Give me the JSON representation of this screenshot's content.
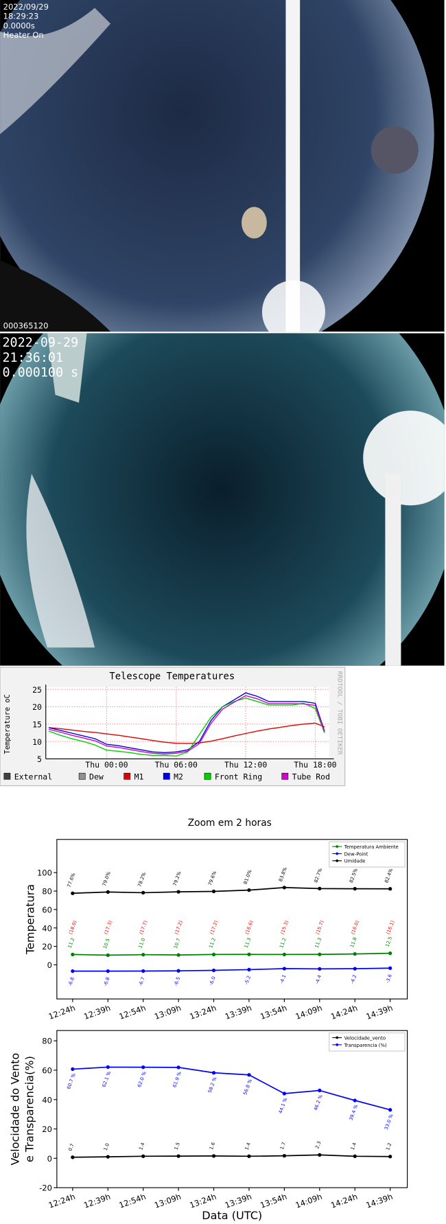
{
  "images": [
    {
      "lines": [
        "2022/09/29",
        "18:29:23",
        "0.0000s",
        "Heater On"
      ],
      "footer": "000365120"
    },
    {
      "lines": [
        "2022-09-29",
        "21:36:01",
        "0.000100 s"
      ]
    }
  ],
  "chart_data": [
    {
      "type": "line",
      "title": "Telescope Temperatures",
      "ylabel": "Temperature oC",
      "side_text": "RRDTOOL / TOBI OETIKER",
      "x": [
        -5,
        -4,
        -3,
        -2,
        -1,
        0,
        1,
        2,
        3,
        4,
        5,
        6,
        7,
        8,
        9,
        10,
        11,
        12,
        13,
        14,
        15,
        16,
        17,
        18,
        18.8
      ],
      "xlim": [
        -5.25,
        19.2
      ],
      "xticks": [
        {
          "value": 0,
          "label": "Thu 00:00"
        },
        {
          "value": 6,
          "label": "Thu 06:00"
        },
        {
          "value": 12,
          "label": "Thu 12:00"
        },
        {
          "value": 18,
          "label": "Thu 18:00"
        }
      ],
      "ylim": [
        5,
        25
      ],
      "yticks": [
        5,
        10,
        15,
        20,
        25
      ],
      "grid": true,
      "legend_only": [
        {
          "name": "External",
          "color": "#404040"
        },
        {
          "name": "Dew",
          "color": "#909090"
        }
      ],
      "series": [
        {
          "name": "M1",
          "color": "#e00000",
          "values": [
            14,
            13.7,
            13.3,
            12.9,
            12.6,
            12.2,
            11.8,
            11.3,
            10.8,
            10.3,
            9.8,
            9.5,
            9.4,
            9.6,
            10.1,
            10.8,
            11.6,
            12.3,
            13,
            13.6,
            14.1,
            14.6,
            15,
            15.3,
            14.2
          ]
        },
        {
          "name": "M2",
          "color": "#0000e0",
          "values": [
            14,
            13.2,
            12.4,
            11.6,
            10.8,
            9.2,
            8.8,
            8.2,
            7.6,
            7,
            6.8,
            7,
            7.6,
            10,
            16,
            20,
            22,
            24,
            23,
            21.5,
            21.5,
            21.5,
            21.5,
            21,
            13
          ]
        },
        {
          "name": "Front Ring",
          "color": "#00d000",
          "values": [
            13,
            11.8,
            10.8,
            10,
            9,
            7.5,
            7.2,
            6.8,
            6.3,
            6,
            6,
            5.8,
            7,
            12,
            17,
            20,
            21.5,
            22.5,
            21.5,
            20.5,
            20.5,
            20.5,
            21,
            19.5,
            12.5
          ]
        },
        {
          "name": "Tube Rod",
          "color": "#d000d0",
          "values": [
            13.5,
            12.7,
            11.8,
            11,
            10.2,
            8.7,
            8.3,
            7.7,
            7.1,
            6.6,
            6.4,
            6.6,
            7.2,
            9.4,
            15.2,
            19.3,
            21.3,
            23.2,
            22.3,
            20.9,
            20.9,
            20.9,
            20.8,
            20.4,
            12.8
          ]
        }
      ]
    },
    {
      "type": "line",
      "title": "Zoom em 2 horas",
      "ylabel": "Temperatura",
      "categories": [
        "12:24h",
        "12:39h",
        "12:54h",
        "13:09h",
        "13:24h",
        "13:39h",
        "13:54h",
        "14:09h",
        "14:24h",
        "14:39h"
      ],
      "ylim": [
        -37,
        136
      ],
      "yticks": [
        0,
        20,
        40,
        60,
        80,
        100
      ],
      "annotations": [
        "(18.0)",
        "(17.3)",
        "(17.7)",
        "(17.2)",
        "(17.2)",
        "(16.6)",
        "(15.3)",
        "(15.7)",
        "(16.0)",
        "(16.1)"
      ],
      "series": [
        {
          "name": "Temperatura Ambiente",
          "color": "#008000",
          "values": [
            11.2,
            10.5,
            11.0,
            10.7,
            11.2,
            11.3,
            11.2,
            11.3,
            11.8,
            12.5
          ],
          "value_labels": [
            "11.2",
            "10.5",
            "11.0",
            "10.7",
            "11.2",
            "11.3",
            "11.2",
            "11.3",
            "11.8",
            "12.5"
          ]
        },
        {
          "name": "Dew-Point",
          "color": "#0000ff",
          "values": [
            -6.8,
            -6.8,
            -6.7,
            -6.5,
            -6.0,
            -5.2,
            -4.1,
            -4.4,
            -4.2,
            -3.6
          ],
          "value_labels": [
            "-6.8",
            "-6.8",
            "-6.7",
            "-6.5",
            "-6.0",
            "-5.2",
            "-4.1",
            "-4.4",
            "-4.2",
            "-3.6"
          ]
        },
        {
          "name": "Umidade",
          "color": "#000000",
          "values": [
            77.6,
            79.0,
            78.2,
            79.2,
            79.6,
            81.0,
            83.8,
            82.7,
            82.5,
            82.4
          ],
          "value_labels": [
            "77.6%",
            "79.0%",
            "78.2%",
            "79.2%",
            "79.6%",
            "81.0%",
            "83.8%",
            "82.7%",
            "82.5%",
            "82.4%"
          ]
        }
      ]
    },
    {
      "type": "line",
      "ylabel": "Velocidade do Vento",
      "ylabel2": "e Transparencia(%)",
      "xlabel": "Data (UTC)",
      "categories": [
        "12:24h",
        "12:39h",
        "12:54h",
        "13:09h",
        "13:24h",
        "13:39h",
        "13:54h",
        "14:09h",
        "14:24h",
        "14:39h"
      ],
      "ylim": [
        -20,
        87
      ],
      "yticks": [
        -20,
        0,
        20,
        40,
        60,
        80
      ],
      "series": [
        {
          "name": "Velocidade_vento",
          "color": "#000000",
          "values": [
            0.7,
            1.0,
            1.4,
            1.5,
            1.6,
            1.4,
            1.7,
            2.3,
            1.4,
            1.2
          ],
          "value_labels": [
            "0.7",
            "1.0",
            "1.4",
            "1.5",
            "1.6",
            "1.4",
            "1.7",
            "2.3",
            "1.4",
            "1.2"
          ]
        },
        {
          "name": "Transparencia (%)",
          "color": "#0000ff",
          "values": [
            60.7,
            62.1,
            62.0,
            61.9,
            58.2,
            56.8,
            44.1,
            46.2,
            39.4,
            33.0
          ],
          "value_labels": [
            "60.7 %",
            "62.1 %",
            "62.0 %",
            "61.9 %",
            "58.2 %",
            "56.8 %",
            "44.1 %",
            "46.2 %",
            "39.4 %",
            "33.0 %"
          ]
        }
      ]
    }
  ]
}
